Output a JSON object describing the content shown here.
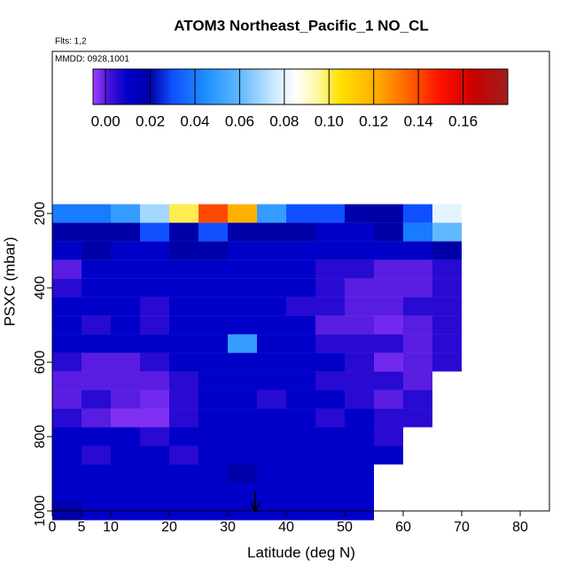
{
  "chart_data": {
    "type": "heatmap",
    "title": "ATOM3 Northeast_Pacific_1 NO_CL",
    "annotations": [
      "Flts: 1,2",
      "MMDD: 0928,1001"
    ],
    "xlabel": "Latitude (deg N)",
    "ylabel": "PSXC (mbar)",
    "x": [
      0,
      5,
      10,
      15,
      20,
      25,
      30,
      35,
      40,
      45,
      50,
      55,
      60,
      65,
      70
    ],
    "x_bin_width": 5,
    "y": [
      200,
      250,
      300,
      350,
      400,
      450,
      500,
      550,
      600,
      650,
      700,
      750,
      800,
      850,
      900,
      950,
      1000
    ],
    "y_bin_height": 50,
    "z": [
      [
        0.04,
        0.04,
        0.05,
        0.07,
        0.1,
        0.14,
        0.12,
        0.05,
        0.03,
        0.03,
        0.02,
        0.02,
        0.03,
        0.08,
        null
      ],
      [
        0.02,
        0.02,
        0.02,
        0.03,
        0.02,
        0.03,
        0.02,
        0.02,
        0.02,
        0.01,
        0.01,
        0.02,
        0.04,
        0.06,
        null
      ],
      [
        0.01,
        0.02,
        0.01,
        0.01,
        0.02,
        0.02,
        0.01,
        0.01,
        0.01,
        0.01,
        0.01,
        0.01,
        0.01,
        0.02,
        null
      ],
      [
        0.0,
        0.01,
        0.01,
        0.01,
        0.01,
        0.01,
        0.01,
        0.01,
        0.01,
        0.005,
        0.005,
        0.0,
        0.0,
        0.005,
        null
      ],
      [
        0.005,
        0.01,
        0.01,
        0.01,
        0.01,
        0.01,
        0.01,
        0.01,
        0.01,
        0.005,
        0.0,
        0.0,
        0.0,
        0.005,
        null
      ],
      [
        0.01,
        0.01,
        0.01,
        0.005,
        0.01,
        0.01,
        0.01,
        0.01,
        0.005,
        0.005,
        0.0,
        0.0,
        0.005,
        0.005,
        null
      ],
      [
        0.01,
        0.005,
        0.01,
        0.005,
        0.01,
        0.01,
        0.01,
        0.01,
        0.01,
        0.0,
        0.0,
        -0.002,
        0.0,
        0.005,
        null
      ],
      [
        0.01,
        0.01,
        0.01,
        0.01,
        0.01,
        0.01,
        0.05,
        0.01,
        0.01,
        0.005,
        0.005,
        0.005,
        0.0,
        0.005,
        null
      ],
      [
        0.005,
        0.0,
        0.0,
        0.005,
        0.01,
        0.01,
        0.01,
        0.01,
        0.01,
        0.01,
        0.005,
        -0.002,
        0.0,
        0.005,
        null
      ],
      [
        0.0,
        0.0,
        0.0,
        0.0,
        0.005,
        0.01,
        0.01,
        0.01,
        0.01,
        0.005,
        0.005,
        0.005,
        0.0,
        null,
        null
      ],
      [
        0.0,
        0.005,
        0.0,
        -0.002,
        0.005,
        0.01,
        0.01,
        0.005,
        0.01,
        0.01,
        0.005,
        0.0,
        0.005,
        null,
        null
      ],
      [
        0.005,
        0.0,
        -0.003,
        -0.003,
        0.005,
        0.01,
        0.01,
        0.01,
        0.01,
        0.005,
        0.01,
        0.005,
        0.005,
        null,
        null
      ],
      [
        0.01,
        0.01,
        0.01,
        0.005,
        0.01,
        0.01,
        0.01,
        0.01,
        0.01,
        0.01,
        0.01,
        0.005,
        null,
        null,
        null
      ],
      [
        0.01,
        0.005,
        0.01,
        0.01,
        0.005,
        0.01,
        0.01,
        0.01,
        0.01,
        0.01,
        0.01,
        0.01,
        null,
        null,
        null
      ],
      [
        0.01,
        0.01,
        0.01,
        0.01,
        0.01,
        0.01,
        0.02,
        0.01,
        0.01,
        0.01,
        0.01,
        null,
        null,
        null,
        null
      ],
      [
        0.01,
        0.01,
        0.01,
        0.01,
        0.01,
        0.01,
        0.01,
        0.01,
        0.01,
        0.01,
        0.01,
        null,
        null,
        null,
        null
      ],
      [
        0.02,
        0.01,
        0.01,
        0.01,
        0.01,
        0.01,
        0.01,
        0.01,
        0.01,
        0.01,
        0.01,
        null,
        null,
        null,
        null
      ]
    ],
    "xlim": [
      0,
      85
    ],
    "xticks": [
      0,
      5,
      10,
      20,
      30,
      40,
      50,
      60,
      70,
      80
    ],
    "ylim": [
      1000,
      -236
    ],
    "yticks": [
      200,
      400,
      600,
      800,
      1000
    ],
    "clim": [
      -0.0056,
      0.18
    ],
    "cticks": [
      {
        "value": 0,
        "label": "0.00"
      },
      {
        "value": 0.02,
        "label": "0.02"
      },
      {
        "value": 0.04,
        "label": "0.04"
      },
      {
        "value": 0.06,
        "label": "0.06"
      },
      {
        "value": 0.08,
        "label": "0.08"
      },
      {
        "value": 0.1,
        "label": "0.10"
      },
      {
        "value": 0.12,
        "label": "0.12"
      },
      {
        "value": 0.14,
        "label": "0.14"
      },
      {
        "value": 0.16,
        "label": "0.16"
      }
    ],
    "colorscale": [
      [
        -0.0056,
        "#a040ff"
      ],
      [
        0.002,
        "#4010d8"
      ],
      [
        0.01,
        "#0000c8"
      ],
      [
        0.02,
        "#0000a8"
      ],
      [
        0.03,
        "#1050ff"
      ],
      [
        0.045,
        "#1e90ff"
      ],
      [
        0.06,
        "#60b8ff"
      ],
      [
        0.075,
        "#c8e8ff"
      ],
      [
        0.085,
        "#ffffff"
      ],
      [
        0.095,
        "#fff8a0"
      ],
      [
        0.105,
        "#ffe000"
      ],
      [
        0.12,
        "#ffb000"
      ],
      [
        0.13,
        "#ff8000"
      ],
      [
        0.15,
        "#ff1000"
      ],
      [
        0.165,
        "#c80000"
      ],
      [
        0.18,
        "#a02020"
      ]
    ]
  }
}
